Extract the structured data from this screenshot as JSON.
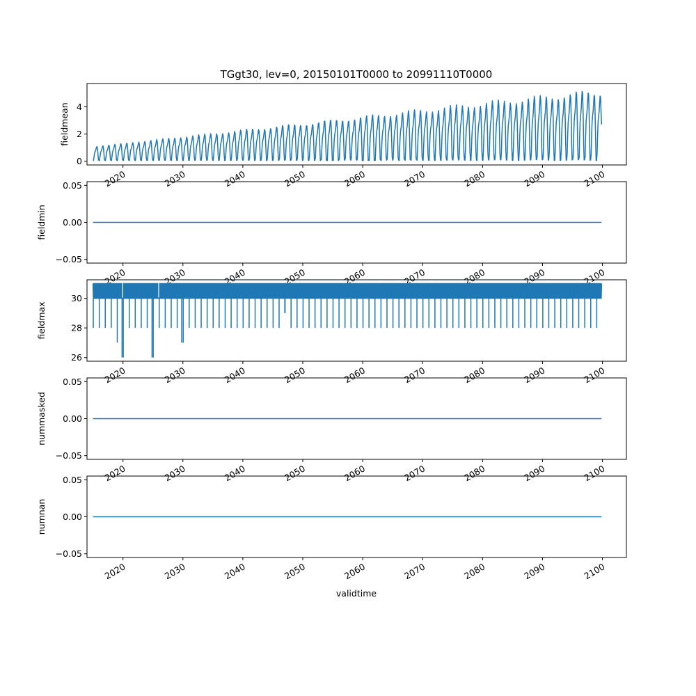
{
  "chart_data": {
    "type": "line",
    "title": "TGgt30, lev=0, 20150101T0000 to 20991110T0000",
    "xlabel": "validtime",
    "x_range": [
      2014.0,
      2104.0
    ],
    "x_data_range": [
      2015.0,
      2099.86
    ],
    "x_ticks": [
      2020,
      2030,
      2040,
      2050,
      2060,
      2070,
      2080,
      2090,
      2100
    ],
    "x_tick_labels": [
      "2020",
      "2030",
      "2040",
      "2050",
      "2060",
      "2070",
      "2080",
      "2090",
      "2100"
    ],
    "panels": [
      {
        "name": "fieldmean",
        "ylabel": "fieldmean",
        "ylim": [
          -0.27,
          5.7
        ],
        "yticks": [
          0,
          2,
          4
        ],
        "ytick_labels": [
          "0",
          "2",
          "4"
        ],
        "trend_start": 0.55,
        "trend_end": 2.6,
        "seasonal_amp_start": 0.5,
        "seasonal_amp_end": 2.5,
        "last_value": 2.7
      },
      {
        "name": "fieldmin",
        "ylabel": "fieldmin",
        "ylim": [
          -0.055,
          0.055
        ],
        "yticks": [
          -0.05,
          0.0,
          0.05
        ],
        "ytick_labels": [
          "−0.05",
          "0.00",
          "0.05"
        ],
        "constant": 0.0
      },
      {
        "name": "fieldmax",
        "ylabel": "fieldmax",
        "ylim": [
          25.75,
          31.25
        ],
        "yticks": [
          26,
          28,
          30
        ],
        "ytick_labels": [
          "26",
          "28",
          "30"
        ],
        "band_low": 30,
        "band_high": 31,
        "dips": [
          {
            "year": 2015.05,
            "value": 28
          },
          {
            "year": 2016.05,
            "value": 28
          },
          {
            "year": 2017.05,
            "value": 28
          },
          {
            "year": 2018.05,
            "value": 28
          },
          {
            "year": 2019.05,
            "value": 27
          },
          {
            "year": 2019.85,
            "value": 26
          },
          {
            "year": 2021.05,
            "value": 28
          },
          {
            "year": 2022.05,
            "value": 28
          },
          {
            "year": 2023.05,
            "value": 28
          },
          {
            "year": 2024.85,
            "value": 26
          },
          {
            "year": 2026.05,
            "value": 28
          },
          {
            "year": 2027.05,
            "value": 28
          },
          {
            "year": 2028.05,
            "value": 28
          },
          {
            "year": 2029.8,
            "value": 27
          },
          {
            "year": 2047.0,
            "value": 29
          }
        ]
      },
      {
        "name": "nummasked",
        "ylabel": "nummasked",
        "ylim": [
          -0.055,
          0.055
        ],
        "yticks": [
          -0.05,
          0.0,
          0.05
        ],
        "ytick_labels": [
          "−0.05",
          "0.00",
          "0.05"
        ],
        "constant": 0.0
      },
      {
        "name": "numnan",
        "ylabel": "numnan",
        "ylim": [
          -0.055,
          0.055
        ],
        "yticks": [
          -0.05,
          0.0,
          0.05
        ],
        "ytick_labels": [
          "−0.05",
          "0.00",
          "0.05"
        ],
        "constant": 0.0
      }
    ]
  }
}
